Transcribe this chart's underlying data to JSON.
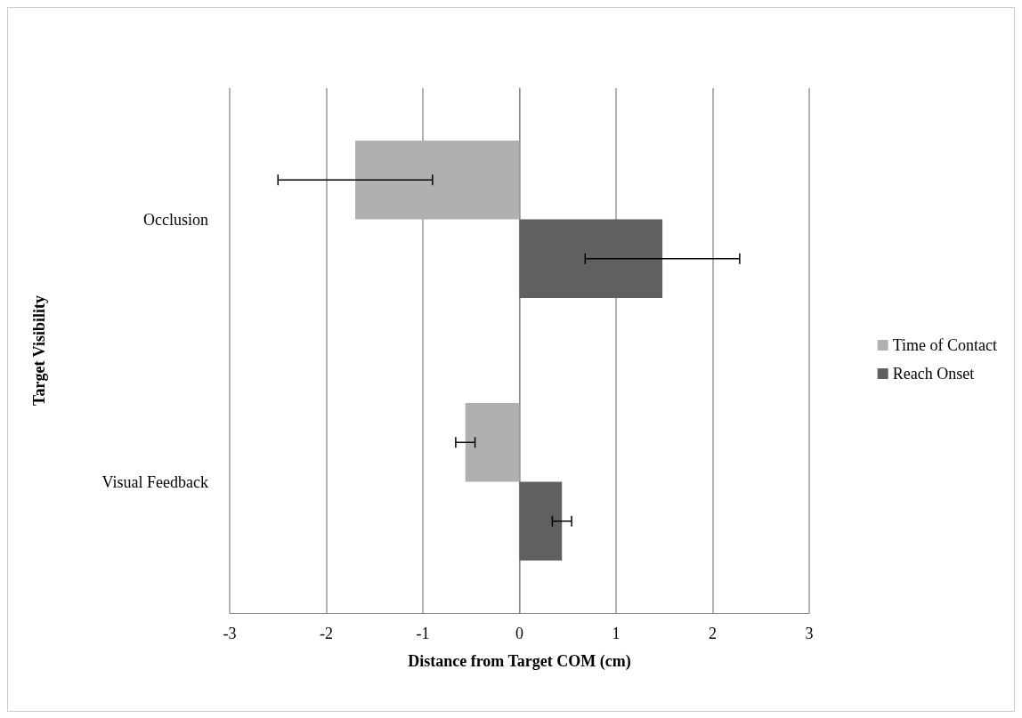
{
  "chart_data": {
    "type": "bar",
    "orientation": "horizontal",
    "xlabel": "Distance from Target COM (cm)",
    "ylabel": "Target Visibility",
    "categories": [
      "Occlusion",
      "Visual Feedback"
    ],
    "series": [
      {
        "name": "Time of Contact",
        "color": "#b0b0b0",
        "values": [
          -1.7,
          -0.56
        ],
        "errors": [
          0.8,
          0.1
        ]
      },
      {
        "name": "Reach Onset",
        "color": "#606060",
        "values": [
          1.48,
          0.44
        ],
        "errors": [
          0.8,
          0.1
        ]
      }
    ],
    "xlim": [
      -3,
      3
    ],
    "xticks": [
      -3,
      -2,
      -1,
      0,
      1,
      2,
      3
    ],
    "grid": "x",
    "legend": "right"
  }
}
